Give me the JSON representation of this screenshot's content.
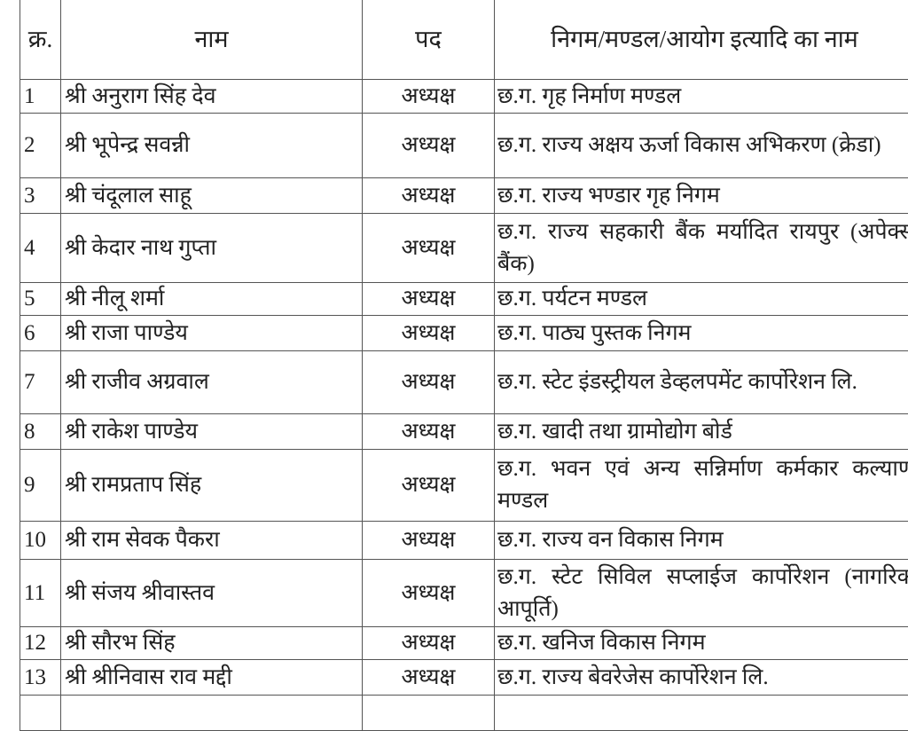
{
  "headers": {
    "sno": "क्र.",
    "name": "नाम",
    "post": "पद",
    "org": "निगम/मण्डल/आयोग इत्यादि का नाम"
  },
  "rows": [
    {
      "sno": "1",
      "name": "श्री अनुराग सिंह देव",
      "post": "अध्यक्ष",
      "org": "छ.ग. गृह निर्माण मण्डल"
    },
    {
      "sno": "2",
      "name": "श्री भूपेन्द्र सवन्नी",
      "post": "अध्यक्ष",
      "org": "छ.ग. राज्य अक्षय ऊर्जा विकास अभिकरण (क्रेडा)"
    },
    {
      "sno": "3",
      "name": "श्री चंदूलाल साहू",
      "post": "अध्यक्ष",
      "org": "छ.ग. राज्य भण्डार गृह निगम"
    },
    {
      "sno": "4",
      "name": "श्री केदार नाथ गुप्ता",
      "post": "अध्यक्ष",
      "org": "छ.ग. राज्य सहकारी बैंक मर्यादित रायपुर (अपेक्स बैंक)"
    },
    {
      "sno": "5",
      "name": "श्री नीलू शर्मा",
      "post": "अध्यक्ष",
      "org": "छ.ग. पर्यटन मण्डल"
    },
    {
      "sno": "6",
      "name": "श्री राजा पाण्डेय",
      "post": "अध्यक्ष",
      "org": "छ.ग. पाठ्य पुस्तक निगम"
    },
    {
      "sno": "7",
      "name": "श्री राजीव अग्रवाल",
      "post": "अध्यक्ष",
      "org": "छ.ग. स्टेट इंडस्ट्रीयल डेव्हलपमेंट कार्पोरेशन लि."
    },
    {
      "sno": "8",
      "name": "श्री राकेश पाण्डेय",
      "post": "अध्यक्ष",
      "org": "छ.ग. खादी तथा ग्रामोद्योग बोर्ड"
    },
    {
      "sno": "9",
      "name": "श्री रामप्रताप सिंह",
      "post": "अध्यक्ष",
      "org": "छ.ग. भवन एवं अन्य सन्निर्माण कर्मकार कल्याण मण्डल"
    },
    {
      "sno": "10",
      "name": "श्री राम सेवक पैकरा",
      "post": "अध्यक्ष",
      "org": "छ.ग. राज्य वन विकास निगम"
    },
    {
      "sno": "11",
      "name": "श्री संजय श्रीवास्तव",
      "post": "अध्यक्ष",
      "org": "छ.ग. स्टेट सिविल सप्लाईज कार्पोरेशन (नागरिक आपूर्ति)"
    },
    {
      "sno": "12",
      "name": "श्री सौरभ सिंह",
      "post": "अध्यक्ष",
      "org": "छ.ग. खनिज विकास निगम"
    },
    {
      "sno": "13",
      "name": "श्री श्रीनिवास राव मद्दी",
      "post": "अध्यक्ष",
      "org": "छ.ग. राज्य बेवरेजेस कार्पोरेशन लि."
    }
  ]
}
